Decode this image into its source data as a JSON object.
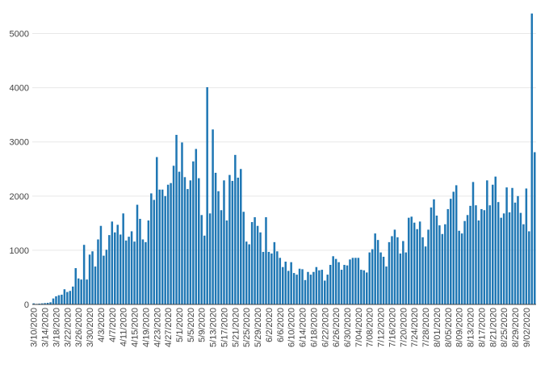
{
  "chart_data": {
    "type": "bar",
    "title": "",
    "xlabel": "",
    "ylabel": "",
    "ylim": [
      0,
      5500
    ],
    "grid": "horizontal",
    "bar_color": "#1f77b4",
    "yticks": [
      0,
      1000,
      2000,
      3000,
      4000,
      5000
    ],
    "ytick_labels": [
      "0",
      "1000",
      "2000",
      "3000",
      "4000",
      "5000"
    ],
    "xtick_labels": [
      "3/10/2020",
      "3/14/2020",
      "3/18/2020",
      "3/22/2020",
      "3/26/2020",
      "3/30/2020",
      "4/3/2020",
      "4/7/2020",
      "4/11/2020",
      "4/15/2020",
      "4/19/2020",
      "4/23/2020",
      "4/27/2020",
      "5/1/2020",
      "5/5/2020",
      "5/9/2020",
      "5/13/2020",
      "5/17/2020",
      "5/21/2020",
      "5/25/2020",
      "5/29/2020",
      "6/2/2020",
      "6/6/2020",
      "6/10/2020",
      "6/14/2020",
      "6/18/2020",
      "6/22/2020",
      "6/26/2020",
      "6/30/2020",
      "7/04/2020",
      "7/08/2020",
      "7/12/2020",
      "7/16/2020",
      "7/20/2020",
      "7/24/2020",
      "7/28/2020",
      "8/01/2020",
      "8/05/2020",
      "8/09/2020",
      "8/13/2020",
      "8/17/2020",
      "8/21/2020",
      "8/25/2020",
      "8/29/2020",
      "9/02/2020"
    ],
    "values": [
      20,
      10,
      15,
      20,
      25,
      30,
      40,
      110,
      150,
      170,
      180,
      280,
      230,
      250,
      330,
      670,
      480,
      460,
      1100,
      460,
      920,
      980,
      700,
      1200,
      1450,
      900,
      1010,
      1280,
      1530,
      1330,
      1470,
      1290,
      1680,
      1180,
      1250,
      1350,
      1160,
      1840,
      1580,
      1200,
      1150,
      1550,
      2050,
      1930,
      2720,
      2120,
      2120,
      2000,
      2210,
      2240,
      2560,
      3130,
      2450,
      2990,
      2350,
      2130,
      2290,
      2640,
      2870,
      2330,
      1650,
      1270,
      4010,
      1680,
      3230,
      2430,
      2090,
      1740,
      2290,
      1550,
      2390,
      2280,
      2760,
      2340,
      2500,
      1710,
      1160,
      1110,
      1520,
      1610,
      1450,
      1330,
      970,
      1610,
      970,
      940,
      1150,
      980,
      860,
      690,
      790,
      620,
      780,
      580,
      550,
      660,
      650,
      450,
      600,
      550,
      600,
      690,
      630,
      640,
      440,
      550,
      730,
      890,
      840,
      780,
      640,
      730,
      720,
      830,
      860,
      860,
      860,
      640,
      630,
      590,
      960,
      1020,
      1310,
      1190,
      960,
      880,
      700,
      1150,
      1260,
      1380,
      1240,
      940,
      1170,
      960,
      1600,
      1620,
      1510,
      1390,
      1530,
      1240,
      1070,
      1380,
      1790,
      1940,
      1640,
      1460,
      1300,
      1480,
      1760,
      1950,
      2080,
      2200,
      1360,
      1310,
      1540,
      1650,
      1820,
      2260,
      1830,
      1550,
      1760,
      1740,
      2290,
      1830,
      2210,
      2360,
      1890,
      1600,
      1680,
      2160,
      1700,
      2150,
      1880,
      2000,
      1690,
      1480,
      2140,
      1350,
      5370,
      2810
    ]
  }
}
